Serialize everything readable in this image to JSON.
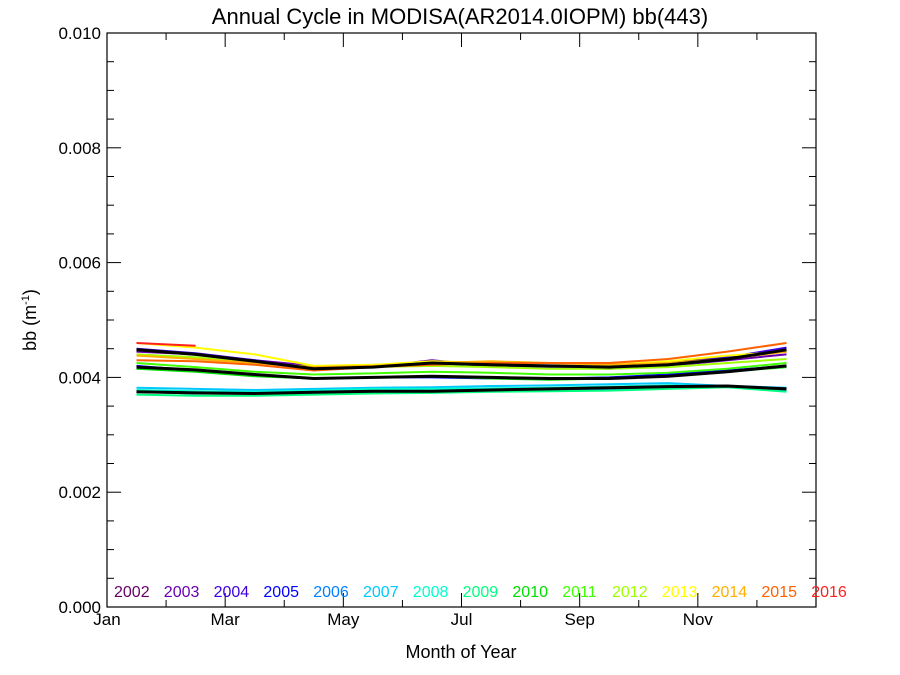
{
  "chart_data": {
    "type": "line",
    "title": "Annual Cycle in MODISA(AR2014.0IOPM) bb(443)",
    "xlabel": "Month of Year",
    "ylabel_main": "bb (m",
    "ylabel_sup": "-1",
    "ylabel_end": ")",
    "xlim": [
      1,
      13
    ],
    "ylim": [
      0.0,
      0.01
    ],
    "x_ticks": [
      {
        "value": 1,
        "label": "Jan"
      },
      {
        "value": 3,
        "label": "Mar"
      },
      {
        "value": 5,
        "label": "May"
      },
      {
        "value": 7,
        "label": "Jul"
      },
      {
        "value": 9,
        "label": "Sep"
      },
      {
        "value": 11,
        "label": "Nov"
      }
    ],
    "y_ticks": [
      {
        "value": 0.0,
        "label": "0.000"
      },
      {
        "value": 0.002,
        "label": "0.002"
      },
      {
        "value": 0.004,
        "label": "0.004"
      },
      {
        "value": 0.006,
        "label": "0.006"
      },
      {
        "value": 0.008,
        "label": "0.008"
      },
      {
        "value": 0.01,
        "label": "0.010"
      }
    ],
    "x": [
      1.5,
      2.5,
      3.5,
      4.5,
      5.5,
      6.5,
      7.5,
      8.5,
      9.5,
      10.5,
      11.5,
      12.5
    ],
    "series": [
      {
        "name": "2002",
        "color": "#660066",
        "values": [
          null,
          null,
          null,
          null,
          null,
          0.00425,
          0.00422,
          0.0042,
          0.00418,
          0.00425,
          0.00435,
          0.00445
        ]
      },
      {
        "name": "2003",
        "color": "#6a00b0",
        "values": [
          0.00445,
          0.0044,
          0.0043,
          0.0042,
          0.00418,
          0.0043,
          0.0042,
          0.00418,
          0.00415,
          0.0042,
          0.0043,
          0.0044
        ]
      },
      {
        "name": "2004",
        "color": "#3c00e0",
        "values": [
          0.0045,
          0.00442,
          0.0043,
          0.00415,
          0.00418,
          0.00425,
          0.0042,
          0.00418,
          0.00416,
          0.00422,
          0.00435,
          0.00452
        ]
      },
      {
        "name": "2005",
        "color": "#0000ff",
        "values": [
          0.0042,
          0.00412,
          0.00405,
          0.00398,
          0.004,
          0.004,
          0.00398,
          0.00398,
          0.004,
          0.00405,
          0.00412,
          0.0042
        ]
      },
      {
        "name": "2006",
        "color": "#0080ff",
        "values": [
          0.00375,
          0.00372,
          0.00372,
          0.00373,
          0.00375,
          0.00374,
          0.00376,
          0.00378,
          0.0038,
          0.00382,
          0.00385,
          0.00378
        ]
      },
      {
        "name": "2007",
        "color": "#00c8ff",
        "values": [
          0.00382,
          0.0038,
          0.00378,
          0.0038,
          0.00382,
          0.00383,
          0.00385,
          0.00386,
          0.00388,
          0.0039,
          0.00385,
          0.00382
        ]
      },
      {
        "name": "2008",
        "color": "#00ffcc",
        "values": [
          0.00378,
          0.00376,
          0.00375,
          0.00377,
          0.0038,
          0.0038,
          0.00381,
          0.00382,
          0.00384,
          0.00386,
          0.00384,
          0.0038
        ]
      },
      {
        "name": "2009",
        "color": "#00ff80",
        "values": [
          0.0037,
          0.00368,
          0.00368,
          0.0037,
          0.00372,
          0.00373,
          0.00375,
          0.00376,
          0.00377,
          0.0038,
          0.00383,
          0.00375
        ]
      },
      {
        "name": "2010",
        "color": "#00e000",
        "values": [
          0.00415,
          0.0041,
          0.00402,
          0.00398,
          0.004,
          0.00402,
          0.00398,
          0.00396,
          0.00398,
          0.00402,
          0.0041,
          0.00418
        ]
      },
      {
        "name": "2011",
        "color": "#40ff00",
        "values": [
          0.00425,
          0.00418,
          0.0041,
          0.00405,
          0.00407,
          0.0041,
          0.00408,
          0.00405,
          0.00405,
          0.00408,
          0.00415,
          0.00425
        ]
      },
      {
        "name": "2012",
        "color": "#a0ff00",
        "values": [
          0.0044,
          0.00435,
          0.00425,
          0.00418,
          0.00418,
          0.0042,
          0.00418,
          0.00415,
          0.00415,
          0.00418,
          0.00425,
          0.00432
        ]
      },
      {
        "name": "2013",
        "color": "#ffff00",
        "values": [
          0.0046,
          0.00452,
          0.0044,
          0.0042,
          0.00422,
          0.00428,
          0.00425,
          0.00425,
          0.00422,
          0.00428,
          0.00438,
          0.00445
        ]
      },
      {
        "name": "2014",
        "color": "#ffb000",
        "values": [
          0.00438,
          0.00432,
          0.00425,
          0.00418,
          0.0042,
          0.00425,
          0.00428,
          0.00425,
          0.00422,
          0.00425,
          0.00432,
          0.00445
        ]
      },
      {
        "name": "2015",
        "color": "#ff6000",
        "values": [
          0.0043,
          0.00428,
          0.00422,
          0.00412,
          0.00418,
          0.00422,
          0.00425,
          0.00425,
          0.00425,
          0.00432,
          0.00445,
          0.0046
        ]
      },
      {
        "name": "2016",
        "color": "#ff2020",
        "values": [
          0.0046,
          0.00455,
          null,
          null,
          null,
          null,
          null,
          null,
          null,
          null,
          null,
          null
        ]
      }
    ],
    "mean_lines": [
      {
        "values": [
          0.00448,
          0.0044,
          0.00428,
          0.00415,
          0.00418,
          0.00425,
          0.00422,
          0.0042,
          0.00418,
          0.00422,
          0.00432,
          0.00448
        ]
      },
      {
        "values": [
          0.00418,
          0.00413,
          0.00405,
          0.00398,
          0.004,
          0.00402,
          0.004,
          0.00398,
          0.00398,
          0.00402,
          0.0041,
          0.0042
        ]
      },
      {
        "values": [
          0.00375,
          0.00373,
          0.00372,
          0.00374,
          0.00376,
          0.00376,
          0.00378,
          0.0038,
          0.00382,
          0.00384,
          0.00385,
          0.0038
        ]
      }
    ],
    "mean_color": "#000000"
  }
}
